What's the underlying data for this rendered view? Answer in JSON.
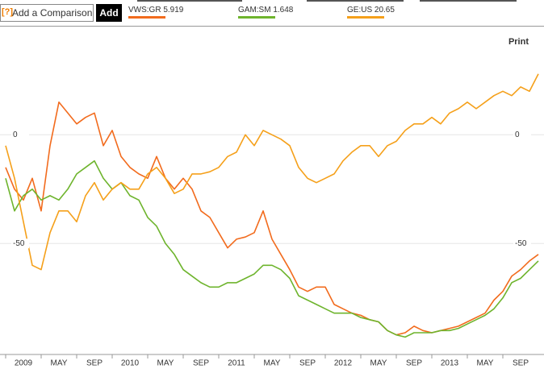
{
  "ui": {
    "help": "[?]",
    "placeholder": "Add a Comparison",
    "button": "Add",
    "print": "Print"
  },
  "chart_data": {
    "type": "line",
    "categories": [
      null,
      null,
      "2009",
      null,
      null,
      null,
      "MAY",
      null,
      null,
      null,
      "SEP",
      null,
      null,
      null,
      "2010",
      null,
      null,
      null,
      "MAY",
      null,
      null,
      null,
      "SEP",
      null,
      null,
      null,
      "2011",
      null,
      null,
      null,
      "MAY",
      null,
      null,
      null,
      "SEP",
      null,
      null,
      null,
      "2012",
      null,
      null,
      null,
      "MAY",
      null,
      null,
      null,
      "SEP",
      null,
      null,
      null,
      "2013",
      null,
      null,
      null,
      "MAY",
      null,
      null,
      null,
      "SEP",
      null,
      null
    ],
    "ylim": [
      -101,
      49
    ],
    "yticks": [
      0,
      -50
    ],
    "grid": true,
    "series": [
      {
        "name": "VWS:GR",
        "price": "5.919",
        "color": "#f26b1d",
        "values": [
          -15,
          -25,
          -30,
          -20,
          -35,
          -5,
          15,
          10,
          5,
          8,
          10,
          -5,
          2,
          -10,
          -15,
          -18,
          -20,
          -10,
          -20,
          -25,
          -20,
          -25,
          -35,
          -38,
          -45,
          -52,
          -48,
          -47,
          -45,
          -35,
          -48,
          -55,
          -62,
          -70,
          -72,
          -70,
          -70,
          -78,
          -80,
          -82,
          -83,
          -85,
          -86,
          -90,
          -92,
          -91,
          -88,
          -90,
          -91,
          -90,
          -89,
          -88,
          -86,
          -84,
          -82,
          -76,
          -72,
          -65,
          -62,
          -58,
          -55
        ]
      },
      {
        "name": "GAM:SM",
        "price": "1.648",
        "color": "#6eb42d",
        "values": [
          -20,
          -35,
          -28,
          -25,
          -30,
          -28,
          -30,
          -25,
          -18,
          -15,
          -12,
          -20,
          -25,
          -22,
          -28,
          -30,
          -38,
          -42,
          -50,
          -55,
          -62,
          -65,
          -68,
          -70,
          -70,
          -68,
          -68,
          -66,
          -64,
          -60,
          -60,
          -62,
          -66,
          -74,
          -76,
          -78,
          -80,
          -82,
          -82,
          -82,
          -84,
          -85,
          -86,
          -90,
          -92,
          -93,
          -91,
          -91,
          -91,
          -90,
          -90,
          -89,
          -87,
          -85,
          -83,
          -80,
          -75,
          -68,
          -66,
          -62,
          -58
        ]
      },
      {
        "name": "GE:US",
        "price": "20.65",
        "color": "#f5a01a",
        "values": [
          -5,
          -20,
          -40,
          -60,
          -62,
          -45,
          -35,
          -35,
          -40,
          -28,
          -22,
          -30,
          -25,
          -22,
          -25,
          -25,
          -18,
          -15,
          -20,
          -27,
          -25,
          -18,
          -18,
          -17,
          -15,
          -10,
          -8,
          0,
          -5,
          2,
          0,
          -2,
          -5,
          -15,
          -20,
          -22,
          -20,
          -18,
          -12,
          -8,
          -5,
          -5,
          -10,
          -5,
          -3,
          2,
          5,
          5,
          8,
          5,
          10,
          12,
          15,
          12,
          15,
          18,
          20,
          18,
          22,
          20,
          28
        ]
      }
    ]
  }
}
